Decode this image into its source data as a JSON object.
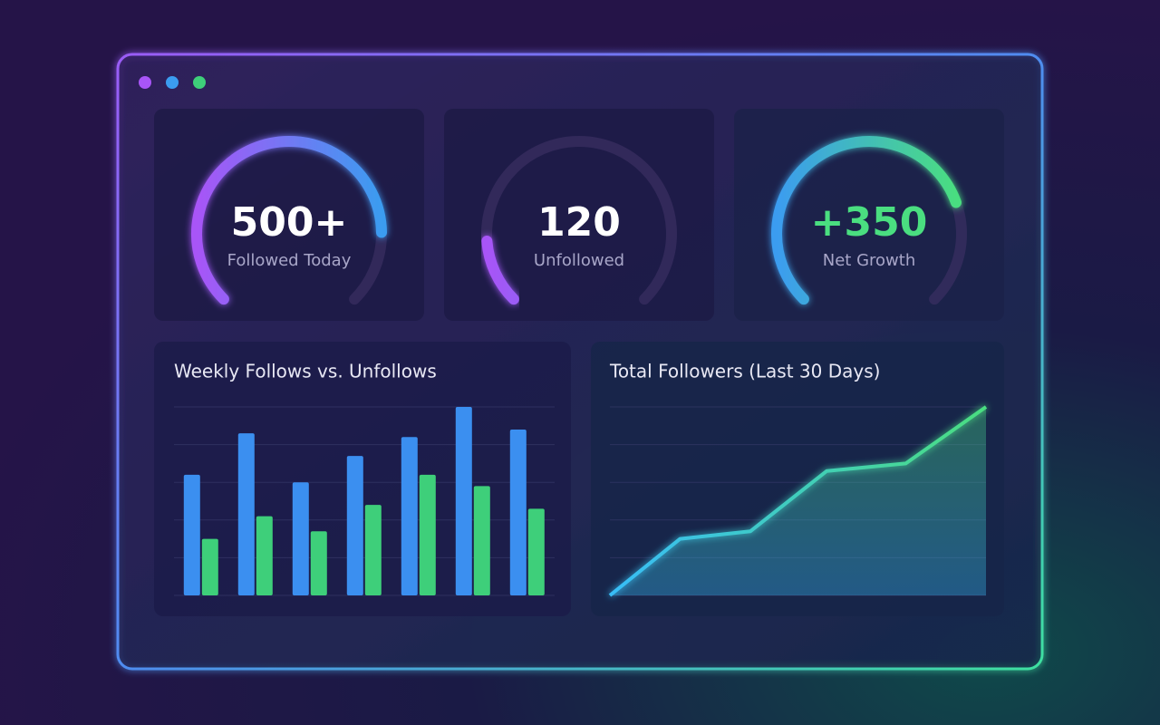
{
  "gauges": [
    {
      "value": "500+",
      "label": "Followed Today",
      "fill": 0.83,
      "colors": [
        "#a855f7",
        "#3b9cf0"
      ],
      "value_color": "#ffffff"
    },
    {
      "value": "120",
      "label": "Unfollowed",
      "fill": 0.15,
      "colors": [
        "#a855f7",
        "#9b5cf6"
      ],
      "value_color": "#ffffff"
    },
    {
      "value": "+350",
      "label": "Net Growth",
      "fill": 0.76,
      "colors": [
        "#3b9cf0",
        "#4ade80"
      ],
      "value_color": "#4ade80"
    }
  ],
  "chart_data": [
    {
      "type": "bar",
      "title": "Weekly Follows vs. Unfollows",
      "categories": [
        null,
        null,
        null,
        null,
        null,
        null,
        null
      ],
      "series": [
        {
          "color": "#3b8ff0",
          "values": [
            3.2,
            4.3,
            3.0,
            3.7,
            4.2,
            5.0,
            4.4
          ]
        },
        {
          "color": "#3ecf7a",
          "values": [
            1.5,
            2.1,
            1.7,
            2.4,
            3.2,
            2.9,
            2.3
          ]
        }
      ],
      "ylim": [
        0,
        5
      ],
      "yticks": [
        0,
        1,
        2,
        3,
        4,
        5
      ],
      "grid": true
    },
    {
      "type": "area",
      "title": "Total Followers (Last 30 Days)",
      "x": [
        0,
        5.6,
        11.2,
        17.3,
        23.6,
        30
      ],
      "xlim": [
        0,
        30
      ],
      "values": [
        0,
        1.5,
        1.7,
        3.3,
        3.5,
        5.0
      ],
      "colors": [
        "#38bdf8",
        "#4ade80"
      ],
      "ylim": [
        0,
        5
      ],
      "yticks": [
        0,
        1,
        2,
        3,
        4,
        5
      ],
      "grid": true
    }
  ]
}
